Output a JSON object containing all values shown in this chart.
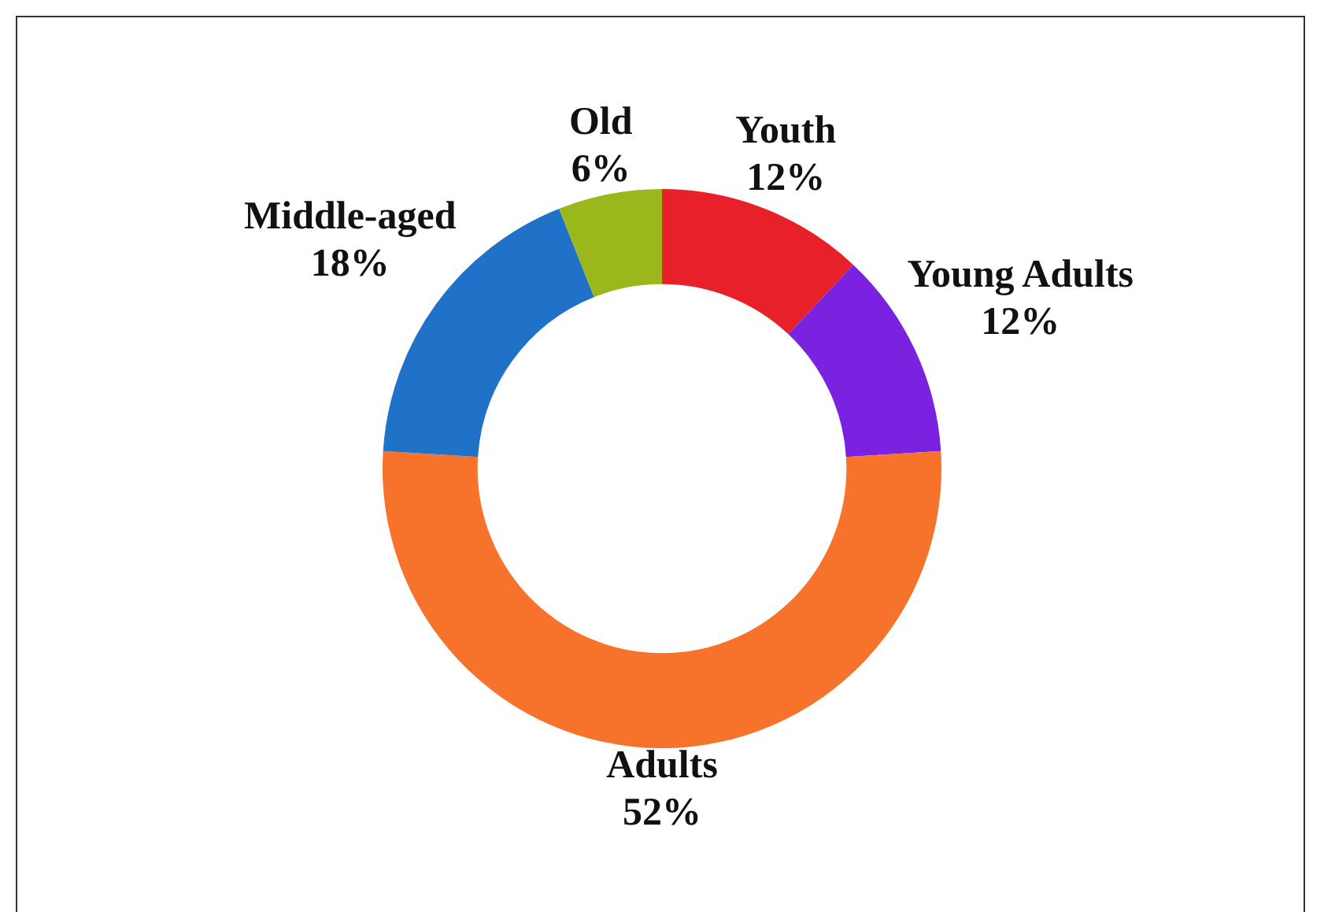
{
  "chart_data": {
    "type": "donut",
    "categories": [
      "Youth",
      "Young Adults",
      "Adults",
      "Middle-aged",
      "Old"
    ],
    "values": [
      12,
      12,
      52,
      18,
      6
    ],
    "colors": [
      "#e8202a",
      "#7a22e0",
      "#f7722a",
      "#1f72c8",
      "#9ab81c"
    ],
    "value_labels": [
      "12%",
      "12%",
      "52%",
      "18%",
      "6%"
    ],
    "legend": false
  }
}
